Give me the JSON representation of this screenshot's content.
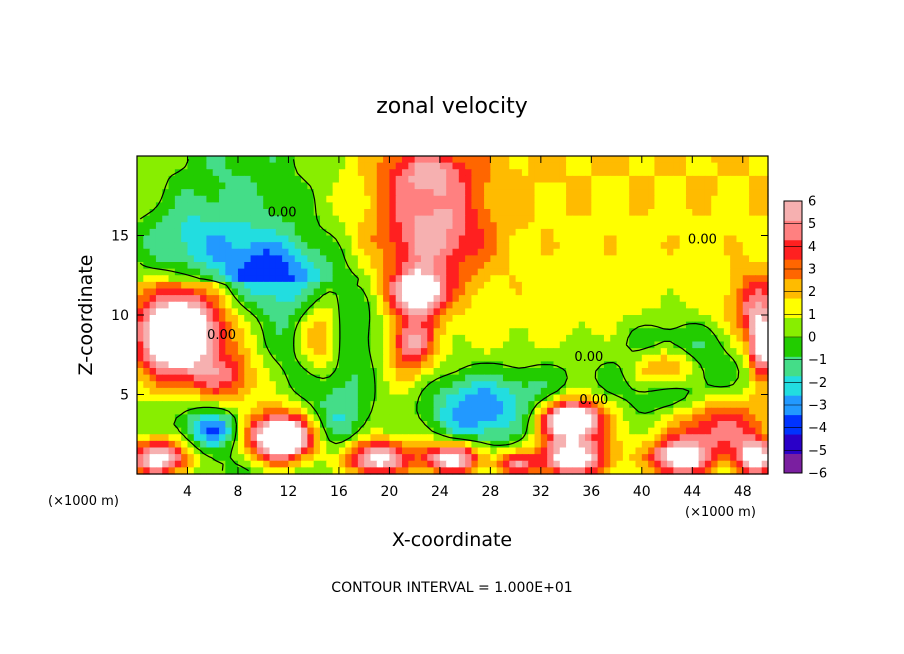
{
  "chart_data": {
    "type": "heatmap",
    "title": "zonal velocity",
    "xlabel": "X-coordinate",
    "ylabel": "Z-coordinate",
    "x_unit_left": "(×1000 m)",
    "x_unit_right": "(×1000 m)",
    "xlim": [
      0,
      50
    ],
    "ylim": [
      0,
      20
    ],
    "x_ticks": [
      4,
      8,
      12,
      16,
      20,
      24,
      28,
      32,
      36,
      40,
      44,
      48
    ],
    "y_ticks": [
      5,
      10,
      15
    ],
    "colorbar": {
      "min": -6,
      "max": 6,
      "tick_values": [
        6,
        5,
        4,
        3,
        2,
        1,
        0,
        -1,
        -2,
        -3,
        -4,
        -5,
        -6
      ],
      "tick_labels": [
        "6",
        "5",
        "4",
        "3",
        "2",
        "1",
        "0",
        "−1",
        "−2",
        "−3",
        "−4",
        "−5",
        "−6"
      ],
      "colors": [
        "#7a1fa0",
        "#2a00c8",
        "#0033ff",
        "#2299ff",
        "#22dde0",
        "#44dd88",
        "#22cc00",
        "#88ee00",
        "#ffff00",
        "#ffbb00",
        "#ff6600",
        "#ff2020",
        "#ff8080",
        "#f6b0b0"
      ]
    },
    "contour_labels": [
      {
        "text": "0.00",
        "x": 11.5,
        "y": 16.2
      },
      {
        "text": "0.00",
        "x": 6.7,
        "y": 8.5
      },
      {
        "text": "0.00",
        "x": 35.8,
        "y": 7.1
      },
      {
        "text": "0.00",
        "x": 36.2,
        "y": 4.4
      },
      {
        "text": "0.00",
        "x": 44.8,
        "y": 14.5
      }
    ],
    "field_features": [
      {
        "x": 23.3,
        "y": 15.2,
        "rx": 5.5,
        "ry": 4.2,
        "value": 4.2
      },
      {
        "x": 23.0,
        "y": 19.0,
        "rx": 4.5,
        "ry": 2.0,
        "value": 2.8
      },
      {
        "x": 22.3,
        "y": 11.4,
        "rx": 2.5,
        "ry": 1.7,
        "value": 6.5
      },
      {
        "x": 21.8,
        "y": 8.2,
        "rx": 2.2,
        "ry": 2.4,
        "value": 4.2
      },
      {
        "x": 14.6,
        "y": 8.8,
        "rx": 2.5,
        "ry": 3.3,
        "value": 6.5
      },
      {
        "x": 15.0,
        "y": 9.0,
        "rx": 4.0,
        "ry": 4.3,
        "value": -4.7
      },
      {
        "x": 10.0,
        "y": 12.5,
        "rx": 5.0,
        "ry": 3.0,
        "value": -3.2
      },
      {
        "x": 3.5,
        "y": 14.5,
        "rx": 5.0,
        "ry": 3.0,
        "value": -1.8
      },
      {
        "x": 2.8,
        "y": 8.5,
        "rx": 3.4,
        "ry": 3.0,
        "value": 6.5
      },
      {
        "x": 4.5,
        "y": 9.5,
        "rx": 5.0,
        "ry": 4.0,
        "value": 4.2
      },
      {
        "x": 1.8,
        "y": 1.0,
        "rx": 3.2,
        "ry": 1.5,
        "value": 6.5
      },
      {
        "x": 11.5,
        "y": 2.2,
        "rx": 2.8,
        "ry": 1.6,
        "value": 6.5
      },
      {
        "x": 11.0,
        "y": 2.5,
        "rx": 4.0,
        "ry": 2.4,
        "value": 4.0
      },
      {
        "x": 19.0,
        "y": 1.0,
        "rx": 3.2,
        "ry": 1.4,
        "value": 6.5
      },
      {
        "x": 25.0,
        "y": 1.0,
        "rx": 3.0,
        "ry": 1.3,
        "value": 6.5
      },
      {
        "x": 30.0,
        "y": 0.6,
        "rx": 2.0,
        "ry": 1.0,
        "value": 4.0
      },
      {
        "x": 34.3,
        "y": 3.4,
        "rx": 2.6,
        "ry": 1.3,
        "value": 6.5
      },
      {
        "x": 34.5,
        "y": 3.5,
        "rx": 4.0,
        "ry": 2.2,
        "value": 4.2
      },
      {
        "x": 32.5,
        "y": 4.5,
        "rx": 5.5,
        "ry": 3.0,
        "value": -2.5
      },
      {
        "x": 34.5,
        "y": 1.0,
        "rx": 3.5,
        "ry": 1.5,
        "value": 6.5
      },
      {
        "x": 42.0,
        "y": 6.6,
        "rx": 3.6,
        "ry": 1.8,
        "value": 6.5
      },
      {
        "x": 42.5,
        "y": 6.5,
        "rx": 5.5,
        "ry": 3.2,
        "value": -5.0
      },
      {
        "x": 46.0,
        "y": 3.0,
        "rx": 5.0,
        "ry": 2.5,
        "value": 4.0
      },
      {
        "x": 43.0,
        "y": 1.0,
        "rx": 3.0,
        "ry": 1.4,
        "value": 6.5
      },
      {
        "x": 49.0,
        "y": 1.0,
        "rx": 1.8,
        "ry": 1.4,
        "value": 6.5
      },
      {
        "x": 49.5,
        "y": 8.0,
        "rx": 1.2,
        "ry": 2.2,
        "value": 6.5
      },
      {
        "x": 49.0,
        "y": 10.5,
        "rx": 2.5,
        "ry": 2.5,
        "value": 3.5
      },
      {
        "x": 7.0,
        "y": 6.0,
        "rx": 3.5,
        "ry": 2.0,
        "value": 3.5
      },
      {
        "x": 16.0,
        "y": 3.5,
        "rx": 3.0,
        "ry": 3.0,
        "value": -2.0
      },
      {
        "x": 26.5,
        "y": 4.0,
        "rx": 4.5,
        "ry": 3.0,
        "value": -3.8
      },
      {
        "x": 6.0,
        "y": 2.8,
        "rx": 3.0,
        "ry": 1.6,
        "value": -3.5
      }
    ],
    "contour_interval_text": "CONTOUR INTERVAL = 1.000E+01",
    "grid": false,
    "legend": "colorbar-right"
  }
}
